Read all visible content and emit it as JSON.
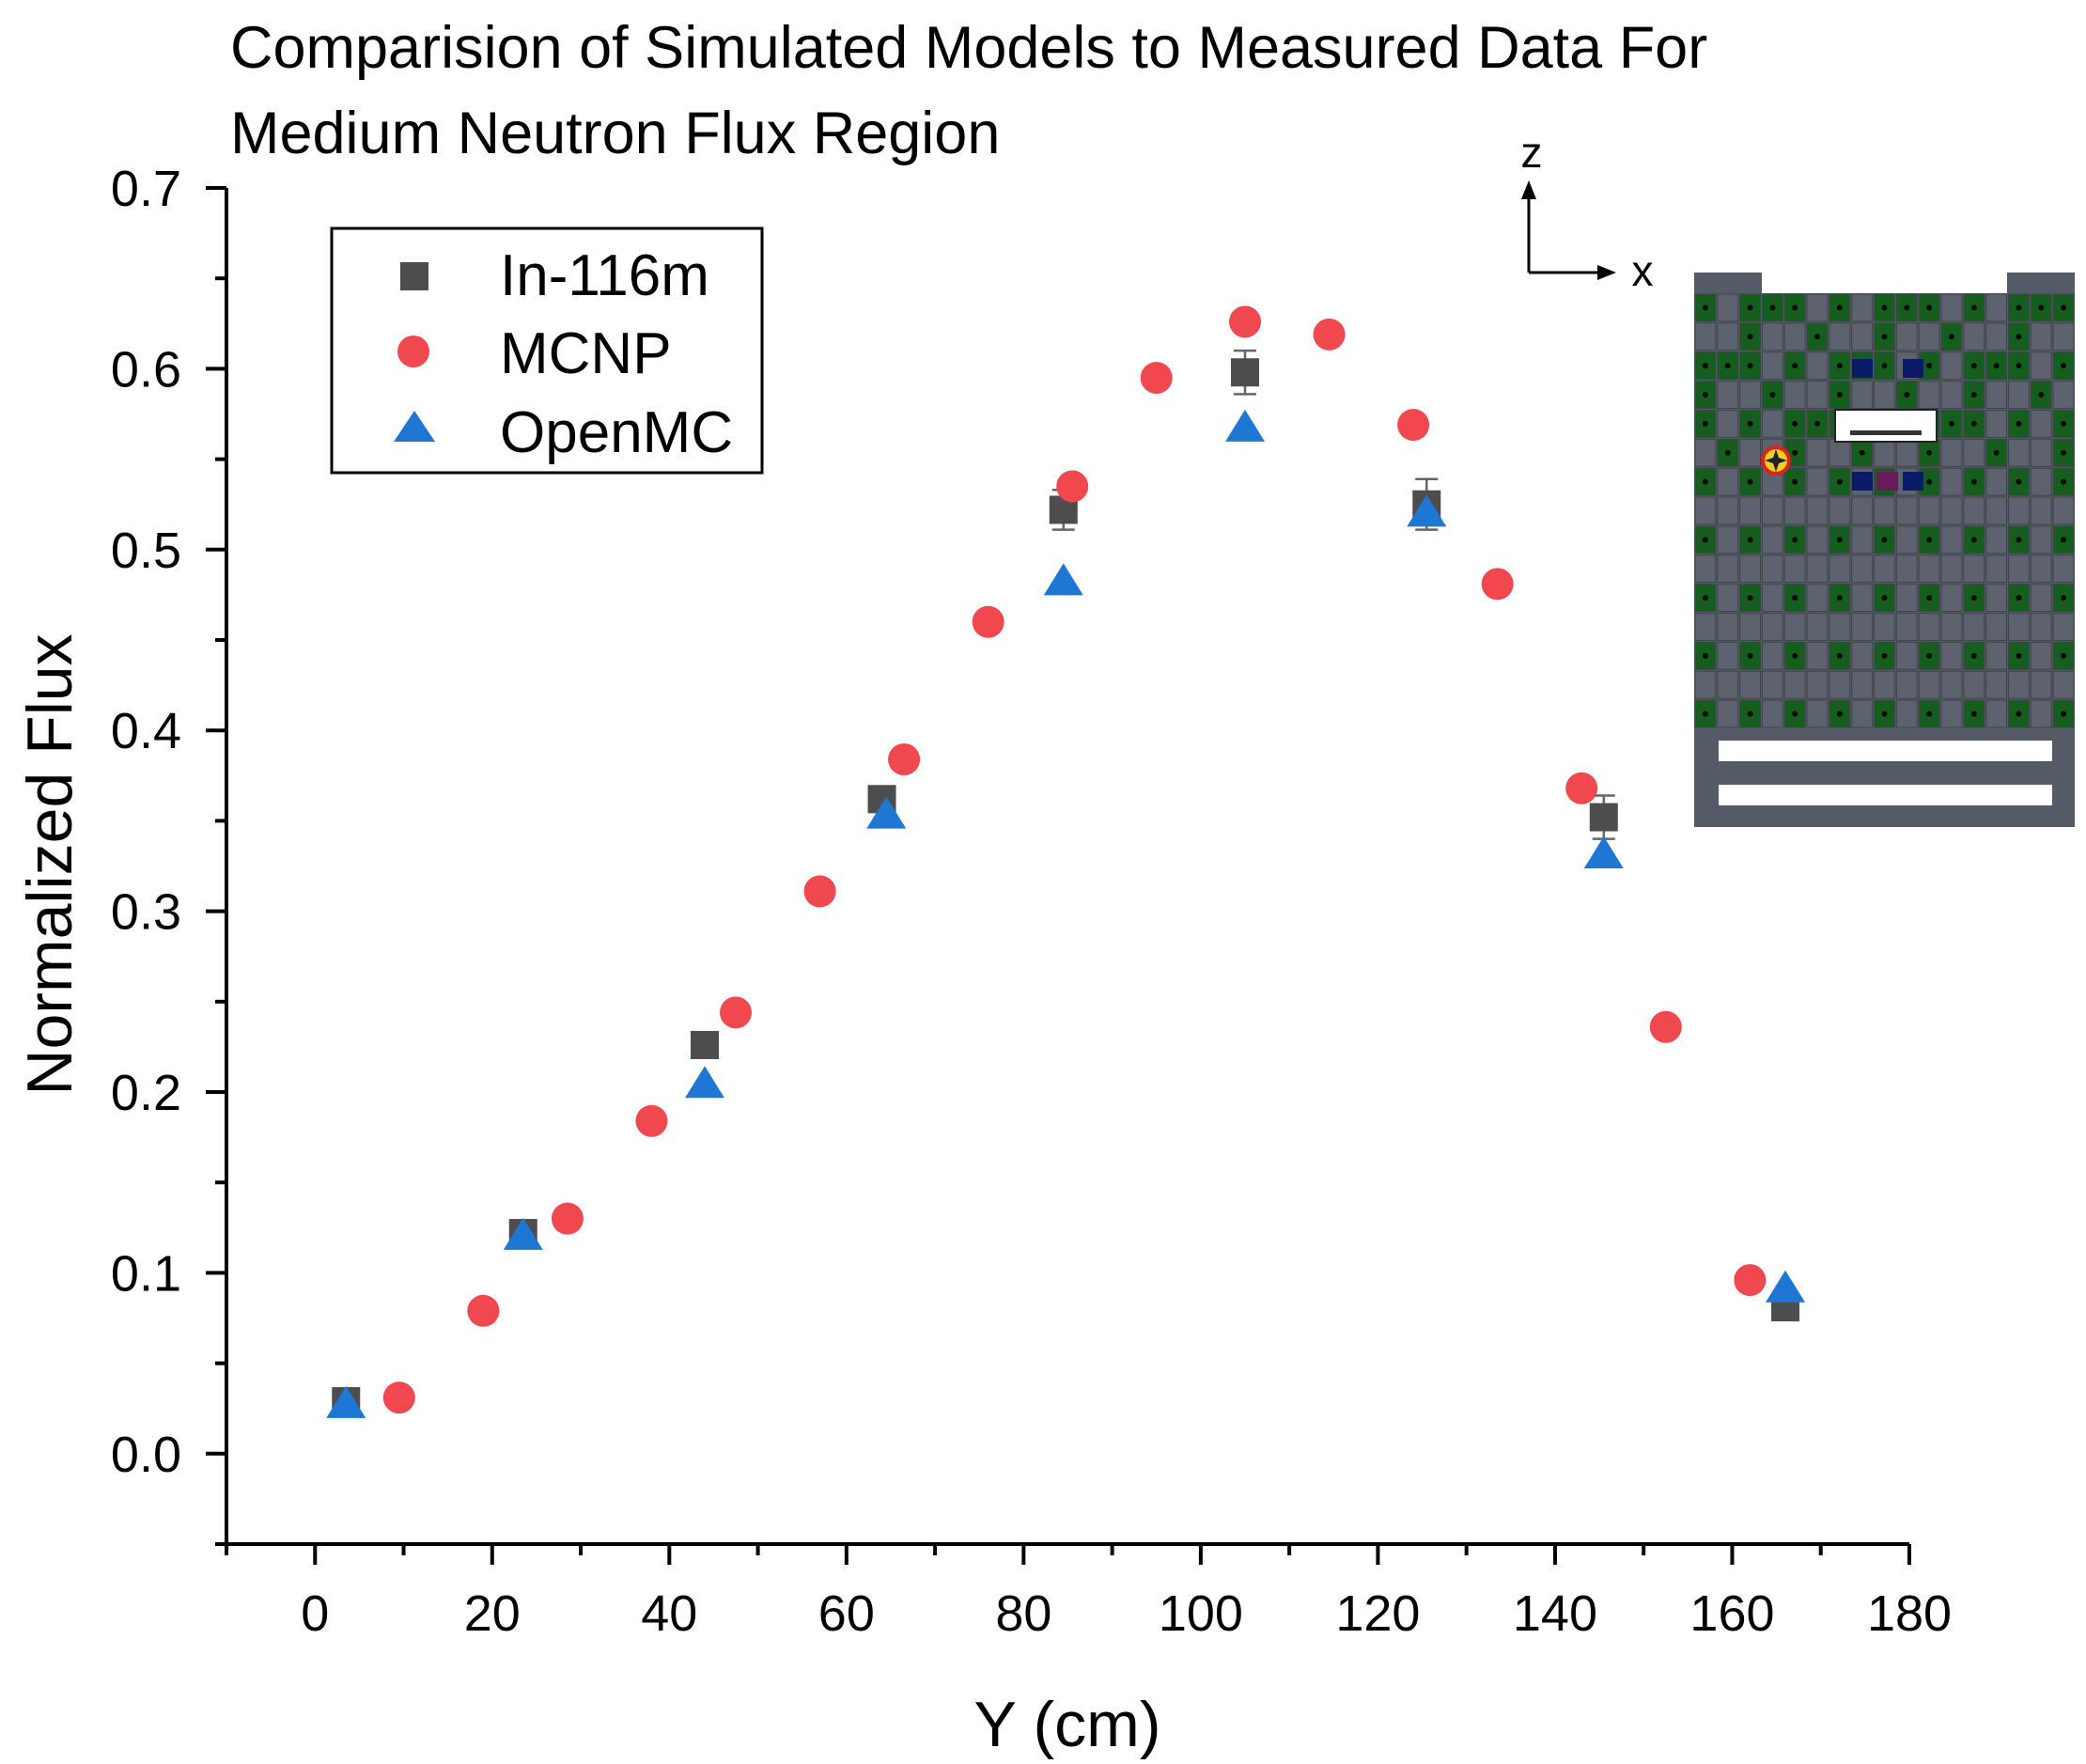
{
  "chart_data": {
    "type": "scatter",
    "title": [
      "Comparision of Simulated Models to Measured Data For",
      "Medium Neutron Flux Region"
    ],
    "xlabel": "Y (cm)",
    "ylabel": "Normalized Flux",
    "xlim": [
      -10,
      180
    ],
    "ylim": [
      -0.05,
      0.7
    ],
    "xticks": [
      0,
      20,
      40,
      60,
      80,
      100,
      120,
      140,
      160,
      180
    ],
    "xtick_labels": [
      "0",
      "20",
      "40",
      "60",
      "80",
      "100",
      "120",
      "140",
      "160",
      "180"
    ],
    "yticks": [
      0.0,
      0.1,
      0.2,
      0.3,
      0.4,
      0.5,
      0.6,
      0.7
    ],
    "ytick_labels": [
      "0.0",
      "0.1",
      "0.2",
      "0.3",
      "0.4",
      "0.5",
      "0.6",
      "0.7"
    ],
    "grid": false,
    "legend_position": "top-left",
    "series": [
      {
        "name": "In-116m",
        "marker": "square",
        "color": "#4d4d4d",
        "x": [
          3.5,
          23.5,
          44,
          64,
          84.5,
          105,
          125.5,
          145.5,
          166
        ],
        "y": [
          0.029,
          0.122,
          0.226,
          0.362,
          0.522,
          0.598,
          0.525,
          0.352,
          0.081
        ],
        "yerr": [
          0.002,
          0.004,
          0.005,
          0.007,
          0.011,
          0.012,
          0.014,
          0.012,
          0.003
        ]
      },
      {
        "name": "MCNP",
        "marker": "circle",
        "color": "#f0484e",
        "x": [
          9.5,
          19,
          28.5,
          38,
          47.5,
          57,
          66.5,
          76,
          85.5,
          95,
          105,
          114.5,
          124,
          133.5,
          143,
          152.5,
          162
        ],
        "y": [
          0.031,
          0.079,
          0.13,
          0.184,
          0.244,
          0.311,
          0.384,
          0.46,
          0.535,
          0.595,
          0.626,
          0.619,
          0.569,
          0.481,
          0.368,
          0.236,
          0.096
        ]
      },
      {
        "name": "OpenMC",
        "marker": "triangle",
        "color": "#1f77d4",
        "x": [
          3.5,
          23.5,
          44,
          64.5,
          84.5,
          105,
          125.5,
          145.5,
          166
        ],
        "y": [
          0.027,
          0.12,
          0.204,
          0.353,
          0.482,
          0.567,
          0.52,
          0.331,
          0.091
        ]
      }
    ],
    "inset": {
      "description_axes": [
        "z",
        "x"
      ]
    }
  }
}
